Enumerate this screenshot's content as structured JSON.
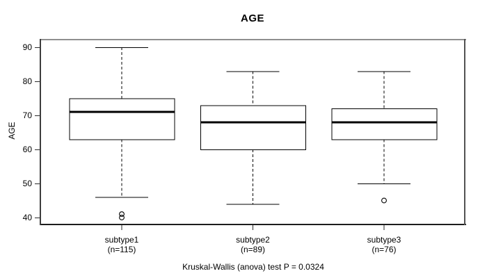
{
  "chart_data": {
    "type": "boxplot",
    "title": "AGE",
    "xlabel": "",
    "ylabel": "AGE",
    "yticks": [
      40,
      50,
      60,
      70,
      80,
      90
    ],
    "ylim": [
      37.8,
      92.2
    ],
    "grid": false,
    "legend": null,
    "categories": [
      "subtype1",
      "subtype2",
      "subtype3"
    ],
    "category_sublabels": [
      "(n=115)",
      "(n=89)",
      "(n=76)"
    ],
    "series": [
      {
        "name": "subtype1",
        "n": 115,
        "whisker_low": 46,
        "q1": 63,
        "median": 71,
        "q3": 75,
        "whisker_high": 90,
        "outliers": [
          41,
          40
        ]
      },
      {
        "name": "subtype2",
        "n": 89,
        "whisker_low": 44,
        "q1": 60,
        "median": 68,
        "q3": 73,
        "whisker_high": 83,
        "outliers": []
      },
      {
        "name": "subtype3",
        "n": 76,
        "whisker_low": 50,
        "q1": 63,
        "median": 68,
        "q3": 72,
        "whisker_high": 83,
        "outliers": [
          45
        ]
      }
    ],
    "caption": "Kruskal-Wallis (anova) test P = 0.0324",
    "colors": {
      "background": "#ffffff",
      "box_fill": "#ffffff",
      "line": "#000000",
      "frame_top": "#8f8f8f",
      "frame_right": "#525252",
      "frame_bottom": "#1c1c1c",
      "frame_left": "#3d3d3d"
    }
  }
}
